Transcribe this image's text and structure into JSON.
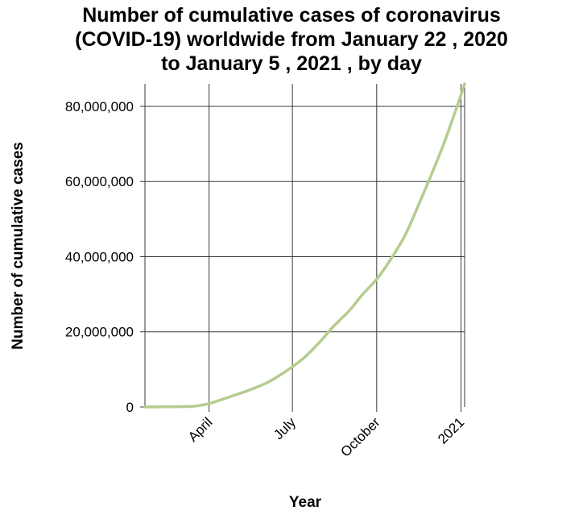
{
  "chart_data": {
    "type": "line",
    "title_lines": [
      "Number of cumulative cases of coronavirus",
      "(COVID-19) worldwide from January 22 , 2020",
      "to January 5 , 2021 , by day"
    ],
    "xlabel": "Year",
    "ylabel": "Number of cumulative cases",
    "x_type": "date",
    "xlim": [
      "2020-01-22",
      "2021-01-05"
    ],
    "ylim": [
      0,
      86000000
    ],
    "x_ticks": [
      {
        "date": "2020-04-01",
        "label": "April"
      },
      {
        "date": "2020-07-01",
        "label": "July"
      },
      {
        "date": "2020-10-01",
        "label": "October"
      },
      {
        "date": "2021-01-01",
        "label": "2021"
      }
    ],
    "y_ticks": [
      {
        "value": 0,
        "label": "0"
      },
      {
        "value": 20000000,
        "label": "20,000,000"
      },
      {
        "value": 40000000,
        "label": "40,000,000"
      },
      {
        "value": 60000000,
        "label": "60,000,000"
      },
      {
        "value": 80000000,
        "label": "80,000,000"
      }
    ],
    "grid": true,
    "series_color": "#b5cc8e",
    "series": [
      {
        "x": [
          "2020-01-22",
          "2020-02-10",
          "2020-03-01",
          "2020-03-15",
          "2020-04-01",
          "2020-04-15",
          "2020-05-01",
          "2020-05-15",
          "2020-06-01",
          "2020-06-15",
          "2020-07-01",
          "2020-07-15",
          "2020-08-01",
          "2020-08-15",
          "2020-09-01",
          "2020-09-15",
          "2020-10-01",
          "2020-10-15",
          "2020-11-01",
          "2020-11-15",
          "2020-12-01",
          "2020-12-15",
          "2021-01-01",
          "2021-01-05"
        ],
        "y": [
          600,
          40000,
          90000,
          180000,
          900000,
          2000000,
          3300000,
          4500000,
          6200000,
          8100000,
          10700000,
          13400000,
          17600000,
          21500000,
          25600000,
          29800000,
          34000000,
          38800000,
          45700000,
          53400000,
          62600000,
          71200000,
          83000000,
          86000000
        ]
      }
    ]
  }
}
